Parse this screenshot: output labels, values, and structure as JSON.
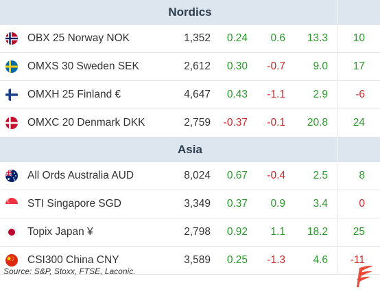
{
  "colors": {
    "positive": "#2a9a2a",
    "negative": "#d22b2b",
    "header_bg": "#dde5ee",
    "logo": "#e84b3a"
  },
  "sections": [
    {
      "title": "Nordics",
      "rows": [
        {
          "flag": "norway-flag-icon",
          "name": "OBX 25 Norway NOK",
          "level": "1,352",
          "c2": "0.24",
          "c3": "0.6",
          "c4": "13.3",
          "c5": "10",
          "s2": "pos",
          "s3": "pos",
          "s4": "pos",
          "s5": "pos"
        },
        {
          "flag": "sweden-flag-icon",
          "name": "OMXS 30 Sweden SEK",
          "level": "2,612",
          "c2": "0.30",
          "c3": "-0.7",
          "c4": "9.0",
          "c5": "17",
          "s2": "pos",
          "s3": "neg",
          "s4": "pos",
          "s5": "pos"
        },
        {
          "flag": "finland-flag-icon",
          "name": "OMXH 25 Finland  €",
          "level": "4,647",
          "c2": "0.43",
          "c3": "-1.1",
          "c4": "2.9",
          "c5": "-6",
          "s2": "pos",
          "s3": "neg",
          "s4": "pos",
          "s5": "neg"
        },
        {
          "flag": "denmark-flag-icon",
          "name": "OMXC 20 Denmark DKK",
          "level": "2,759",
          "c2": "-0.37",
          "c3": "-0.1",
          "c4": "20.8",
          "c5": "24",
          "s2": "neg",
          "s3": "neg",
          "s4": "pos",
          "s5": "pos"
        }
      ]
    },
    {
      "title": "Asia",
      "rows": [
        {
          "flag": "australia-flag-icon",
          "name": "All Ords Australia AUD",
          "level": "8,024",
          "c2": "0.67",
          "c3": "-0.4",
          "c4": "2.5",
          "c5": "8",
          "s2": "pos",
          "s3": "neg",
          "s4": "pos",
          "s5": "pos"
        },
        {
          "flag": "singapore-flag-icon",
          "name": "STI Singapore SGD",
          "level": "3,349",
          "c2": "0.37",
          "c3": "0.9",
          "c4": "3.4",
          "c5": "0",
          "s2": "pos",
          "s3": "pos",
          "s4": "pos",
          "s5": "neg"
        },
        {
          "flag": "japan-flag-icon",
          "name": "Topix Japan  ¥",
          "level": "2,798",
          "c2": "0.92",
          "c3": "1.1",
          "c4": "18.2",
          "c5": "25",
          "s2": "pos",
          "s3": "pos",
          "s4": "pos",
          "s5": "pos"
        },
        {
          "flag": "china-flag-icon",
          "name": "CSI300 China CNY",
          "level": "3,589",
          "c2": "0.25",
          "c3": "-1.3",
          "c4": "4.6",
          "c5": "-11",
          "s2": "pos",
          "s3": "neg",
          "s4": "pos",
          "s5": "neg"
        }
      ]
    }
  ],
  "footer": {
    "source": "Source:  S&P, Stoxx, FTSE, Laconic."
  }
}
